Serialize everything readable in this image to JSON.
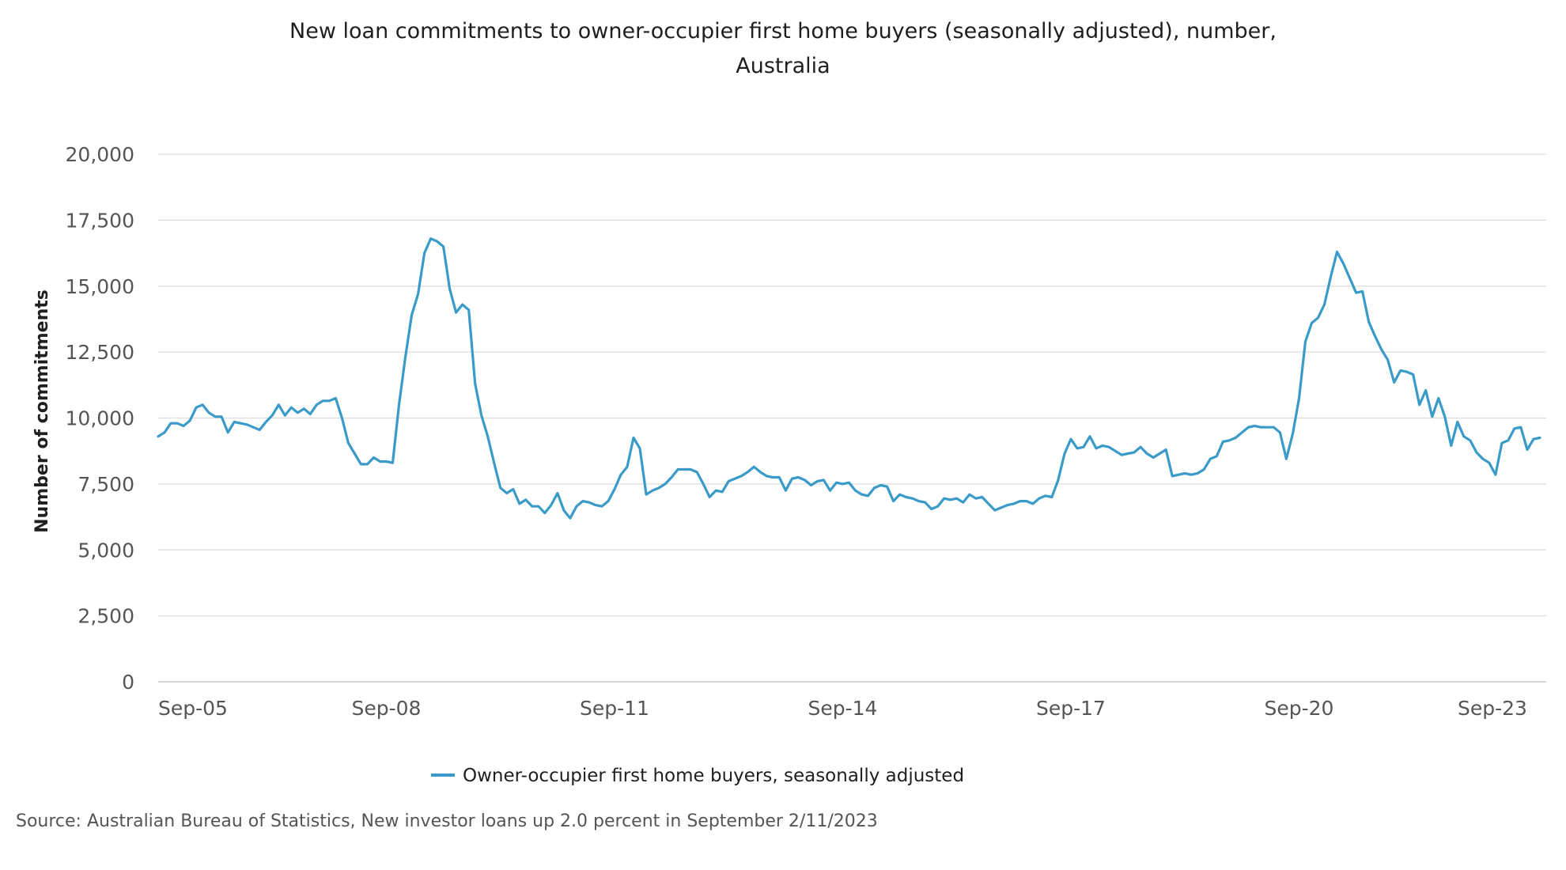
{
  "chart_data": {
    "type": "line",
    "title_line1": "New loan commitments to owner-occupier first home buyers (seasonally adjusted), number,",
    "title_line2": "Australia",
    "xlabel": "",
    "ylabel": "Number of commitments",
    "ylim": [
      0,
      20000
    ],
    "yticks": [
      0,
      2500,
      5000,
      7500,
      10000,
      12500,
      15000,
      17500,
      20000
    ],
    "ytick_labels": [
      "0",
      "2,500",
      "5,000",
      "7,500",
      "10,000",
      "12,500",
      "15,000",
      "17,500",
      "20,000"
    ],
    "xlim": [
      "2005-09",
      "2023-12"
    ],
    "xticks": [
      "2005-09",
      "2008-09",
      "2011-09",
      "2014-09",
      "2017-09",
      "2020-09",
      "2023-09"
    ],
    "xtick_labels": [
      "Sep-05",
      "Sep-08",
      "Sep-11",
      "Sep-14",
      "Sep-17",
      "Sep-20",
      "Sep-23"
    ],
    "grid": "horizontal",
    "legend_position": "bottom-center",
    "series": [
      {
        "name": "Owner-occupier first home buyers, seasonally adjusted",
        "color": "#3a9bc8",
        "start": "2005-09",
        "frequency": "monthly",
        "values": [
          9300,
          9450,
          9800,
          9800,
          9700,
          9900,
          10400,
          10500,
          10200,
          10050,
          10050,
          9450,
          9850,
          9800,
          9750,
          9650,
          9550,
          9850,
          10100,
          10500,
          10100,
          10400,
          10200,
          10350,
          10150,
          10500,
          10650,
          10650,
          10750,
          10000,
          9050,
          8650,
          8250,
          8250,
          8500,
          8350,
          8350,
          8300,
          10500,
          12300,
          13900,
          14700,
          16250,
          16800,
          16700,
          16500,
          14900,
          14000,
          14300,
          14100,
          11300,
          10100,
          9300,
          8300,
          7350,
          7150,
          7300,
          6750,
          6900,
          6650,
          6650,
          6400,
          6700,
          7150,
          6500,
          6200,
          6650,
          6850,
          6800,
          6700,
          6650,
          6850,
          7300,
          7850,
          8150,
          9250,
          8850,
          7100,
          7250,
          7350,
          7500,
          7750,
          8050,
          8050,
          8050,
          7950,
          7500,
          7000,
          7250,
          7200,
          7600,
          7700,
          7800,
          7950,
          8150,
          7950,
          7800,
          7750,
          7750,
          7250,
          7700,
          7750,
          7650,
          7450,
          7600,
          7650,
          7250,
          7550,
          7500,
          7550,
          7250,
          7100,
          7050,
          7350,
          7450,
          7400,
          6850,
          7100,
          7000,
          6950,
          6850,
          6800,
          6550,
          6650,
          6950,
          6900,
          6950,
          6800,
          7100,
          6950,
          7000,
          6750,
          6500,
          6600,
          6700,
          6750,
          6850,
          6850,
          6750,
          6950,
          7050,
          7000,
          7650,
          8650,
          9200,
          8850,
          8900,
          9300,
          8850,
          8950,
          8900,
          8750,
          8600,
          8650,
          8700,
          8900,
          8650,
          8500,
          8650,
          8800,
          7800,
          7850,
          7900,
          7850,
          7900,
          8050,
          8450,
          8550,
          9100,
          9150,
          9250,
          9450,
          9650,
          9700,
          9650,
          9650,
          9650,
          9450,
          8450,
          9400,
          10750,
          12900,
          13600,
          13800,
          14300,
          15350,
          16300,
          15850,
          15300,
          14750,
          14800,
          13650,
          13100,
          12600,
          12200,
          11350,
          11800,
          11750,
          11650,
          10500,
          11050,
          10050,
          10750,
          10050,
          8950,
          9850,
          9300,
          9150,
          8700,
          8450,
          8300,
          7850,
          9050,
          9150,
          9600,
          9650,
          8800,
          9200,
          9250
        ]
      }
    ],
    "source": "Source: Australian Bureau of Statistics, New investor loans up 2.0 percent in September 2/11/2023"
  }
}
